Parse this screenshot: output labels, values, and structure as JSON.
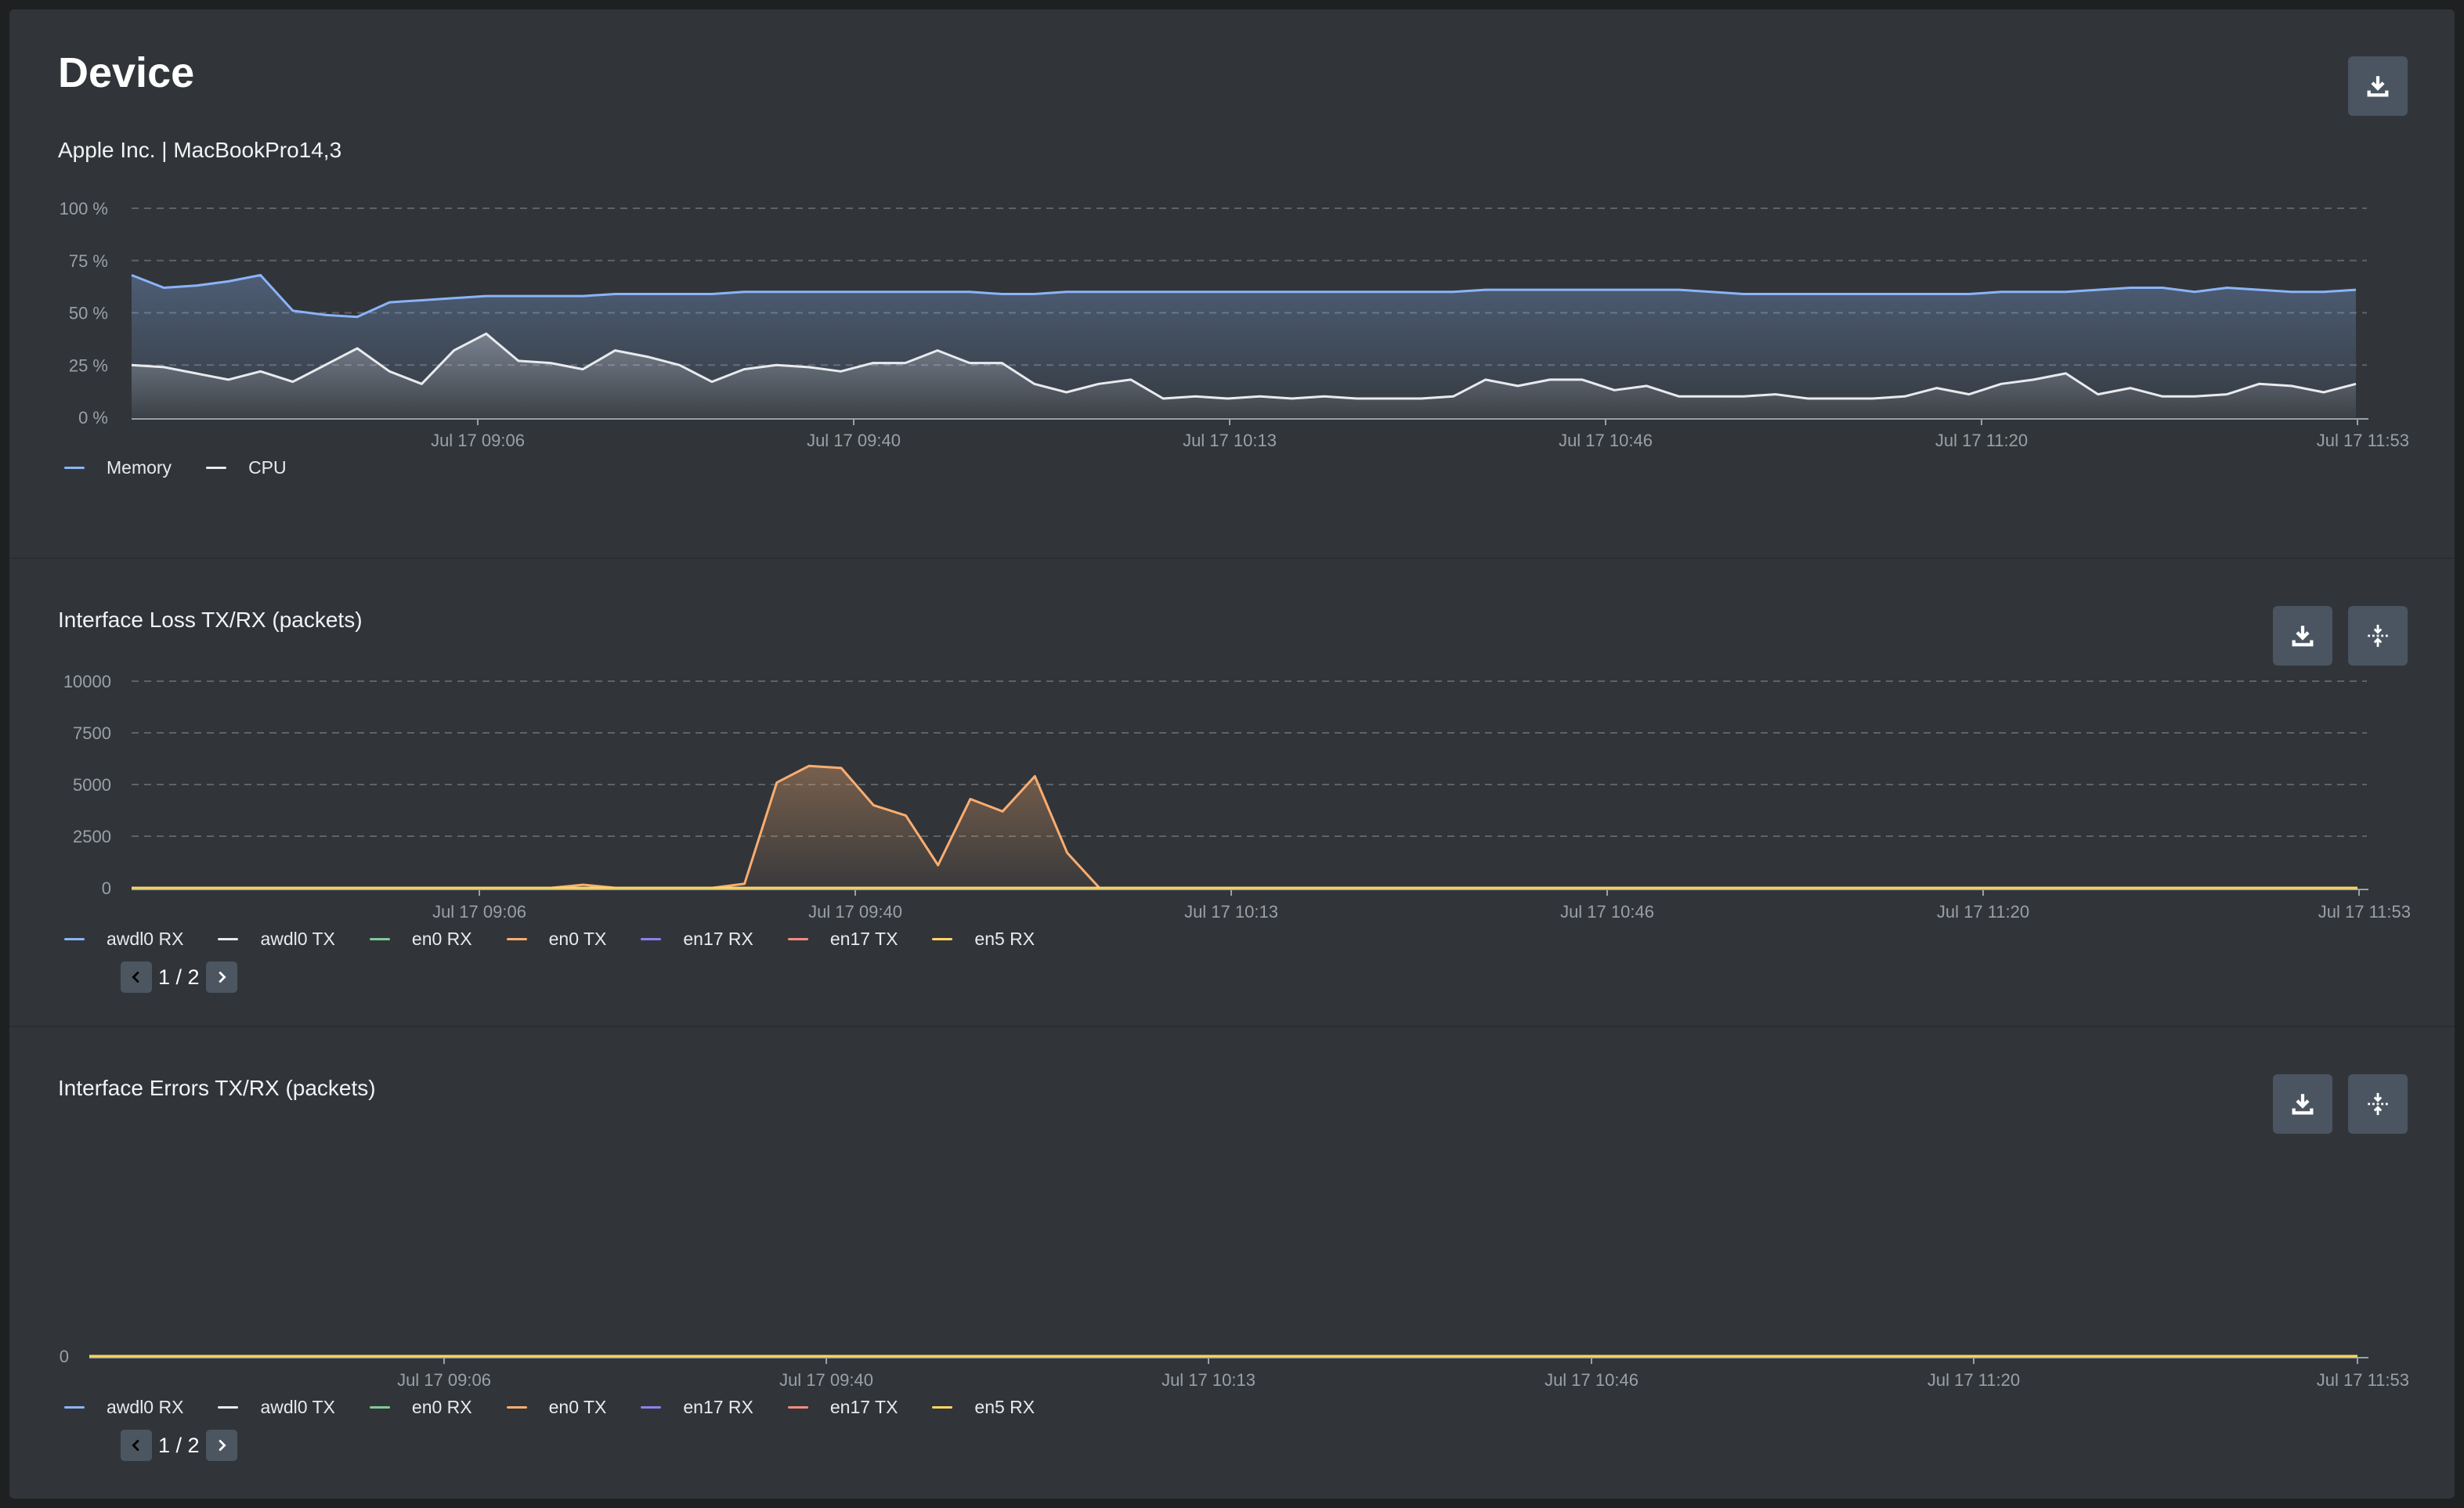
{
  "page": {
    "title": "Device",
    "subtitle": "Apple Inc. | MacBookPro14,3"
  },
  "icons": {
    "download": "download-icon",
    "expand": "expand-vertical-icon",
    "prev": "chevron-left-icon",
    "next": "chevron-right-icon"
  },
  "colors": {
    "background": "#313539",
    "memory": "#8ab4f8",
    "cpu": "#e8eaed",
    "awdl0_rx": "#8ab4f8",
    "awdl0_tx": "#e8eaed",
    "en0_rx": "#81c995",
    "en0_tx": "#fcad70",
    "en17_rx": "#8e7ff0",
    "en17_tx": "#f28b82",
    "en5_rx": "#fdd663"
  },
  "x_tick_labels": [
    "Jul 17 09:06",
    "Jul 17 09:40",
    "Jul 17 10:13",
    "Jul 17 10:46",
    "Jul 17 11:20",
    "Jul 17 11:53"
  ],
  "device_chart": {
    "legend": [
      "Memory",
      "CPU"
    ],
    "y_tick_labels": [
      "0 %",
      "25 %",
      "50 %",
      "75 %",
      "100 %"
    ]
  },
  "loss_chart": {
    "title": "Interface Loss TX/RX (packets)",
    "legend": [
      "awdl0 RX",
      "awdl0 TX",
      "en0 RX",
      "en0 TX",
      "en17 RX",
      "en17 TX",
      "en5 RX"
    ],
    "pager": "1 / 2",
    "y_tick_labels": [
      "0",
      "2500",
      "5000",
      "7500",
      "10000"
    ]
  },
  "errors_chart": {
    "title": "Interface Errors TX/RX (packets)",
    "legend": [
      "awdl0 RX",
      "awdl0 TX",
      "en0 RX",
      "en0 TX",
      "en17 RX",
      "en17 TX",
      "en5 RX"
    ],
    "pager": "1 / 2",
    "y_tick_labels": [
      "0"
    ]
  },
  "chart_data": [
    {
      "type": "area",
      "ylim": [
        0,
        100
      ],
      "grid": true,
      "legend_position": "bottom-left",
      "series": [
        {
          "name": "Memory",
          "values": [
            68,
            62,
            63,
            65,
            68,
            51,
            49,
            48,
            55,
            56,
            57,
            58,
            58,
            58,
            58,
            59,
            59,
            59,
            59,
            60,
            60,
            60,
            60,
            60,
            60,
            60,
            60,
            59,
            59,
            60,
            60,
            60,
            60,
            60,
            60,
            60,
            60,
            60,
            60,
            60,
            60,
            60,
            61,
            61,
            61,
            61,
            61,
            61,
            61,
            60,
            59,
            59,
            59,
            59,
            59,
            59,
            59,
            59,
            60,
            60,
            60,
            61,
            62,
            62,
            60,
            62,
            61,
            60,
            60,
            61
          ]
        },
        {
          "name": "CPU",
          "values": [
            25,
            24,
            21,
            18,
            22,
            17,
            25,
            33,
            22,
            16,
            32,
            40,
            27,
            26,
            23,
            32,
            29,
            25,
            17,
            23,
            25,
            24,
            22,
            26,
            26,
            32,
            26,
            26,
            16,
            12,
            16,
            18,
            9,
            10,
            9,
            10,
            9,
            10,
            9,
            9,
            9,
            10,
            18,
            15,
            18,
            18,
            13,
            15,
            10,
            10,
            10,
            11,
            9,
            9,
            9,
            10,
            14,
            11,
            16,
            18,
            21,
            11,
            14,
            10,
            10,
            11,
            16,
            15,
            12,
            16
          ]
        }
      ]
    },
    {
      "type": "area",
      "ylim": [
        0,
        10000
      ],
      "grid": true,
      "legend_position": "bottom-left",
      "series": [
        {
          "name": "en0 TX",
          "values": [
            0,
            0,
            0,
            0,
            0,
            0,
            0,
            0,
            0,
            0,
            0,
            0,
            0,
            0,
            150,
            0,
            0,
            0,
            0,
            200,
            5100,
            5900,
            5800,
            4000,
            3500,
            1100,
            4300,
            3700,
            5400,
            1700,
            0,
            0,
            0,
            0,
            0,
            0,
            0,
            0,
            0,
            0,
            0,
            0,
            0,
            0,
            0,
            0,
            0,
            0,
            0,
            0,
            0,
            0,
            0,
            0,
            0,
            0,
            0,
            0,
            0,
            0,
            0,
            0,
            0,
            0,
            0,
            0,
            0,
            0,
            0,
            0
          ]
        },
        {
          "name": "en5 RX",
          "values": [
            0,
            0,
            0,
            0,
            0,
            0,
            0,
            0,
            0,
            0,
            0,
            0,
            0,
            0,
            0,
            0,
            0,
            0,
            0,
            0,
            0,
            0,
            0,
            0,
            0,
            0,
            0,
            0,
            0,
            0,
            0,
            0,
            0,
            0,
            0,
            0,
            0,
            0,
            0,
            0,
            0,
            0,
            0,
            0,
            0,
            0,
            0,
            0,
            0,
            0,
            0,
            0,
            0,
            0,
            0,
            0,
            0,
            0,
            0,
            0,
            0,
            0,
            0,
            0,
            0,
            0,
            0,
            0,
            0,
            0
          ]
        }
      ]
    },
    {
      "type": "line",
      "ylim": [
        0,
        1
      ],
      "grid": false,
      "legend_position": "bottom-left",
      "series": [
        {
          "name": "en0 TX",
          "values": [
            0,
            0,
            0,
            0,
            0,
            0,
            0,
            0,
            0,
            0,
            0,
            0,
            0,
            0,
            0,
            0,
            0,
            0,
            0,
            0,
            0,
            0,
            0,
            0,
            0,
            0,
            0,
            0,
            0,
            0,
            0,
            0,
            0,
            0,
            0,
            0,
            0,
            0,
            0,
            0,
            0,
            0,
            0,
            0,
            0,
            0,
            0,
            0,
            0,
            0,
            0,
            0,
            0,
            0,
            0,
            0,
            0,
            0,
            0,
            0,
            0,
            0,
            0,
            0,
            0,
            0,
            0,
            0,
            0,
            0
          ]
        },
        {
          "name": "en5 RX",
          "values": [
            0,
            0,
            0,
            0,
            0,
            0,
            0,
            0,
            0,
            0,
            0,
            0,
            0,
            0,
            0,
            0,
            0,
            0,
            0,
            0,
            0,
            0,
            0,
            0,
            0,
            0,
            0,
            0,
            0,
            0,
            0,
            0,
            0,
            0,
            0,
            0,
            0,
            0,
            0,
            0,
            0,
            0,
            0,
            0,
            0,
            0,
            0,
            0,
            0,
            0,
            0,
            0,
            0,
            0,
            0,
            0,
            0,
            0,
            0,
            0,
            0,
            0,
            0,
            0,
            0,
            0,
            0,
            0,
            0,
            0
          ]
        }
      ]
    }
  ]
}
